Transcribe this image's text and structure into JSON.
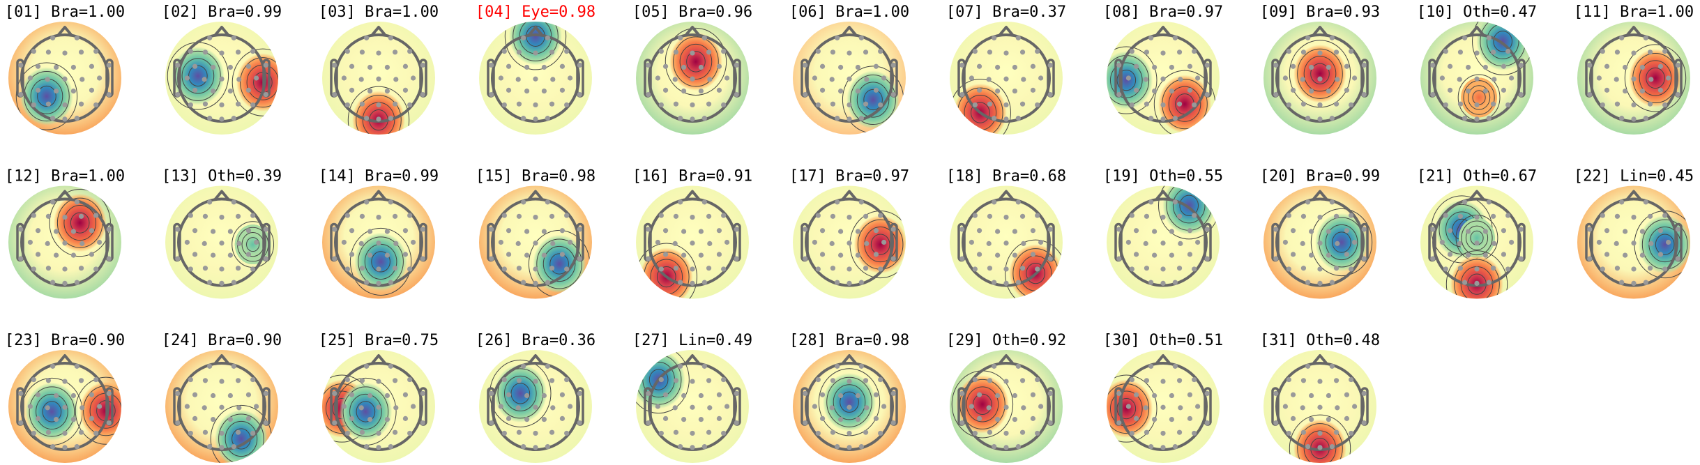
{
  "chart_data": {
    "type": "heatmap",
    "subtype": "topomap-grid",
    "grid": {
      "columns": 11,
      "rows": 3
    },
    "colormap": "Spectral_r",
    "colors": {
      "title": "#000000",
      "flagged_title": "#ff0000",
      "head_outline": "#666666",
      "electrode": "#999999",
      "contour": "#444444"
    },
    "components": [
      {
        "index": "01",
        "label": "Bra",
        "prob": "1.00",
        "base": "orange",
        "peaks": [
          {
            "sign": "negative",
            "location": "left-posterior"
          }
        ]
      },
      {
        "index": "02",
        "label": "Bra",
        "prob": "0.99",
        "base": "pale",
        "peaks": [
          {
            "sign": "negative",
            "location": "left"
          },
          {
            "sign": "positive",
            "location": "right-edge"
          }
        ]
      },
      {
        "index": "03",
        "label": "Bra",
        "prob": "1.00",
        "base": "pale",
        "peaks": [
          {
            "sign": "positive",
            "location": "bottom-edge"
          }
        ]
      },
      {
        "index": "04",
        "label": "Eye",
        "prob": "0.98",
        "flagged": true,
        "base": "pale",
        "peaks": [
          {
            "sign": "negative",
            "location": "front-edge"
          }
        ]
      },
      {
        "index": "05",
        "label": "Bra",
        "prob": "0.96",
        "base": "green",
        "peaks": [
          {
            "sign": "positive",
            "location": "front-center"
          }
        ]
      },
      {
        "index": "06",
        "label": "Bra",
        "prob": "1.00",
        "base": "peach",
        "peaks": [
          {
            "sign": "negative",
            "location": "right-posterior"
          }
        ]
      },
      {
        "index": "07",
        "label": "Bra",
        "prob": "0.37",
        "base": "pale",
        "peaks": [
          {
            "sign": "positive",
            "location": "bottom-left-edge"
          }
        ]
      },
      {
        "index": "08",
        "label": "Bra",
        "prob": "0.97",
        "base": "pale",
        "peaks": [
          {
            "sign": "negative",
            "location": "left-edge"
          },
          {
            "sign": "positive",
            "location": "lower-right"
          }
        ]
      },
      {
        "index": "09",
        "label": "Bra",
        "prob": "0.93",
        "base": "green",
        "peaks": [
          {
            "sign": "positive",
            "location": "center"
          }
        ]
      },
      {
        "index": "10",
        "label": "Oth",
        "prob": "0.47",
        "base": "green",
        "peaks": [
          {
            "sign": "negative",
            "location": "top-right-edge"
          },
          {
            "sign": "positive",
            "location": "center-posterior",
            "weak": true
          }
        ]
      },
      {
        "index": "11",
        "label": "Bra",
        "prob": "1.00",
        "base": "green",
        "peaks": [
          {
            "sign": "positive",
            "location": "right-central"
          }
        ]
      },
      {
        "index": "12",
        "label": "Bra",
        "prob": "1.00",
        "base": "green",
        "peaks": [
          {
            "sign": "positive",
            "location": "right-frontal"
          }
        ]
      },
      {
        "index": "13",
        "label": "Oth",
        "prob": "0.39",
        "base": "pale",
        "peaks": [
          {
            "sign": "negative",
            "location": "right",
            "weak": true
          }
        ]
      },
      {
        "index": "14",
        "label": "Bra",
        "prob": "0.99",
        "base": "orange",
        "peaks": [
          {
            "sign": "negative",
            "location": "center-posterior"
          }
        ]
      },
      {
        "index": "15",
        "label": "Bra",
        "prob": "0.98",
        "base": "orange",
        "peaks": [
          {
            "sign": "negative",
            "location": "right-posterior"
          }
        ]
      },
      {
        "index": "16",
        "label": "Bra",
        "prob": "0.91",
        "base": "pale",
        "peaks": [
          {
            "sign": "positive",
            "location": "bottom-left-edge"
          }
        ]
      },
      {
        "index": "17",
        "label": "Bra",
        "prob": "0.97",
        "base": "pale",
        "peaks": [
          {
            "sign": "positive",
            "location": "right"
          }
        ]
      },
      {
        "index": "18",
        "label": "Bra",
        "prob": "0.68",
        "base": "pale",
        "peaks": [
          {
            "sign": "positive",
            "location": "bottom-right-edge"
          }
        ]
      },
      {
        "index": "19",
        "label": "Oth",
        "prob": "0.55",
        "base": "pale",
        "peaks": [
          {
            "sign": "negative",
            "location": "top-right-edge"
          }
        ]
      },
      {
        "index": "20",
        "label": "Bra",
        "prob": "0.99",
        "base": "orange",
        "peaks": [
          {
            "sign": "negative",
            "location": "right-central"
          }
        ]
      },
      {
        "index": "21",
        "label": "Oth",
        "prob": "0.67",
        "base": "pale",
        "peaks": [
          {
            "sign": "negative",
            "location": "left-frontal"
          },
          {
            "sign": "negative",
            "location": "center",
            "weak": true
          },
          {
            "sign": "positive",
            "location": "bottom-edge"
          }
        ]
      },
      {
        "index": "22",
        "label": "Lin",
        "prob": "0.45",
        "base": "orange",
        "peaks": [
          {
            "sign": "negative",
            "location": "right"
          }
        ]
      },
      {
        "index": "23",
        "label": "Bra",
        "prob": "0.90",
        "base": "orange",
        "peaks": [
          {
            "sign": "negative",
            "location": "left-central"
          },
          {
            "sign": "positive",
            "location": "right-edge"
          }
        ]
      },
      {
        "index": "24",
        "label": "Bra",
        "prob": "0.90",
        "base": "orange",
        "peaks": [
          {
            "sign": "negative",
            "location": "bottom-right"
          }
        ]
      },
      {
        "index": "25",
        "label": "Bra",
        "prob": "0.75",
        "base": "pale",
        "peaks": [
          {
            "sign": "positive",
            "location": "left-edge"
          },
          {
            "sign": "negative",
            "location": "left-central"
          }
        ]
      },
      {
        "index": "26",
        "label": "Bra",
        "prob": "0.36",
        "base": "pale",
        "peaks": [
          {
            "sign": "negative",
            "location": "left-frontal"
          }
        ]
      },
      {
        "index": "27",
        "label": "Lin",
        "prob": "0.49",
        "base": "pale",
        "peaks": [
          {
            "sign": "negative",
            "location": "top-left-edge"
          }
        ]
      },
      {
        "index": "28",
        "label": "Bra",
        "prob": "0.98",
        "base": "orange",
        "peaks": [
          {
            "sign": "negative",
            "location": "center"
          }
        ]
      },
      {
        "index": "29",
        "label": "Oth",
        "prob": "0.92",
        "base": "green",
        "peaks": [
          {
            "sign": "positive",
            "location": "left"
          }
        ]
      },
      {
        "index": "30",
        "label": "Oth",
        "prob": "0.51",
        "base": "pale",
        "peaks": [
          {
            "sign": "positive",
            "location": "left-edge"
          }
        ]
      },
      {
        "index": "31",
        "label": "Oth",
        "prob": "0.48",
        "base": "pale",
        "peaks": [
          {
            "sign": "positive",
            "location": "bottom-edge"
          }
        ]
      }
    ]
  }
}
